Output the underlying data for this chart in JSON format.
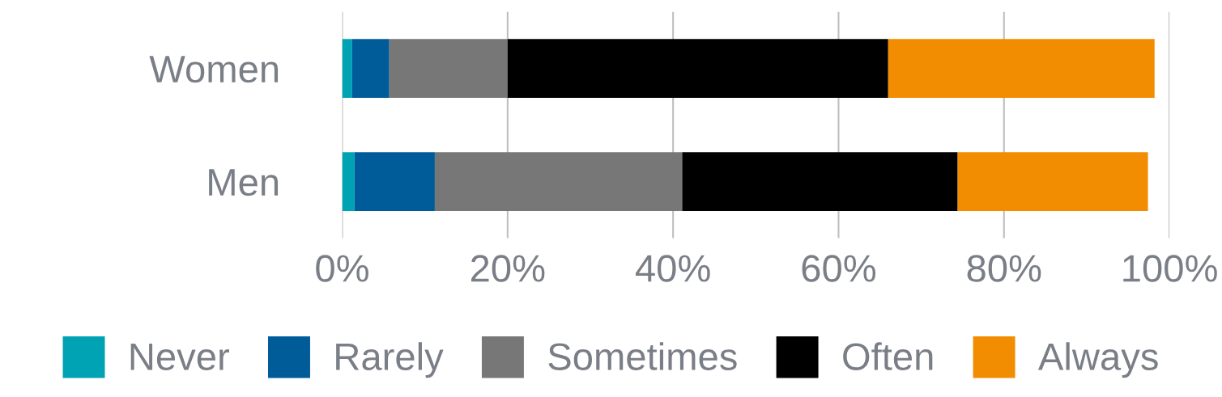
{
  "chart_data": {
    "type": "bar",
    "orientation": "horizontal",
    "stacked": true,
    "categories": [
      "Women",
      "Men"
    ],
    "series": [
      {
        "name": "Never",
        "color": "#00a3b4",
        "values": [
          1.2,
          1.5
        ]
      },
      {
        "name": "Rarely",
        "color": "#005b99",
        "values": [
          4.5,
          9.7
        ]
      },
      {
        "name": "Sometimes",
        "color": "#777777",
        "values": [
          14.3,
          29.9
        ]
      },
      {
        "name": "Often",
        "color": "#000000",
        "values": [
          46.0,
          33.3
        ]
      },
      {
        "name": "Always",
        "color": "#f28c00",
        "values": [
          32.2,
          23.0
        ]
      }
    ],
    "xlim": [
      0,
      100
    ],
    "xticks": [
      {
        "value": 0,
        "label": "0%"
      },
      {
        "value": 20,
        "label": "20%"
      },
      {
        "value": 40,
        "label": "40%"
      },
      {
        "value": 60,
        "label": "60%"
      },
      {
        "value": 80,
        "label": "80%"
      },
      {
        "value": 100,
        "label": "100%"
      }
    ],
    "grid": "x",
    "legend": "bottom"
  }
}
